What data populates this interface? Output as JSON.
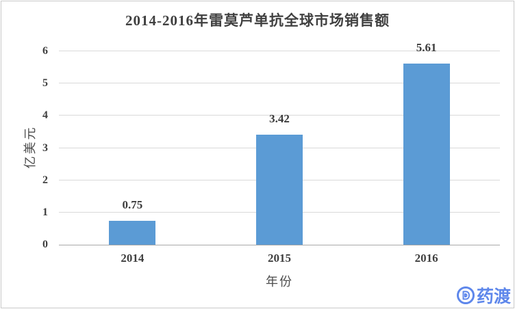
{
  "title": "2014-2016年雷莫芦单抗全球市场销售额",
  "chart_data": {
    "type": "bar",
    "title": "2014-2016年雷莫芦单抗全球市场销售额",
    "categories": [
      "2014",
      "2015",
      "2016"
    ],
    "values": [
      0.75,
      3.42,
      5.61
    ],
    "data_labels": [
      "0.75",
      "3.42",
      "5.61"
    ],
    "xlabel": "年份",
    "ylabel": "亿美元",
    "ylim": [
      0,
      6
    ],
    "yticks": [
      0,
      1,
      2,
      3,
      4,
      5,
      6
    ],
    "grid": "horizontal",
    "legend_position": "none",
    "bar_color": "#5B9BD5"
  },
  "colors": {
    "text": "#404040",
    "gridline": "#D9D9D9",
    "axis_line": "#A8A8A8",
    "frame_border": "#C9C9C9",
    "background": "#FFFFFF",
    "watermark_blue": "#5E87EB"
  },
  "watermark": {
    "brand": "药渡",
    "icon": "pharmacodia-d-logo"
  }
}
